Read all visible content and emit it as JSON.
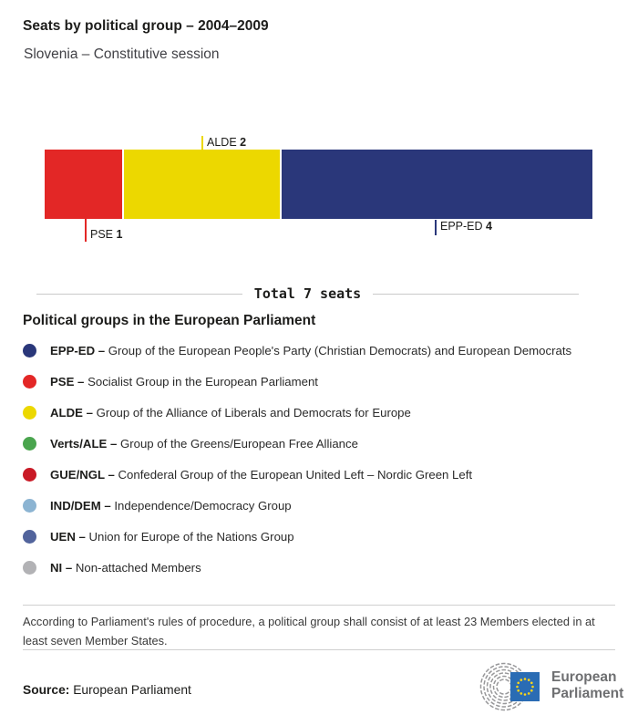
{
  "header": {
    "title": "Seats by political group – 2004–2009",
    "subtitle": "Slovenia – Constitutive session"
  },
  "chart_data": {
    "type": "bar",
    "orientation": "horizontal-stacked",
    "title": "Seats by political group – 2004–2009",
    "subtitle": "Slovenia – Constitutive session",
    "categories": [
      "PSE",
      "ALDE",
      "EPP-ED"
    ],
    "values": [
      1,
      2,
      4
    ],
    "total_seats": 7,
    "total_label": "Total 7 seats",
    "segments": [
      {
        "label": "PSE",
        "value": 1,
        "color": "#e32726",
        "callout_position": "below"
      },
      {
        "label": "ALDE",
        "value": 2,
        "color": "#ecd800",
        "callout_position": "above"
      },
      {
        "label": "EPP-ED",
        "value": 4,
        "color": "#2a377a",
        "callout_position": "below"
      }
    ]
  },
  "legend": {
    "heading": "Political groups in the European Parliament",
    "items": [
      {
        "abbr": "EPP-ED –",
        "desc": "Group of the European People's Party (Christian Democrats) and European Democrats",
        "color": "#2a377a"
      },
      {
        "abbr": "PSE –",
        "desc": "Socialist Group in the European Parliament",
        "color": "#e32726"
      },
      {
        "abbr": "ALDE –",
        "desc": "Group of the Alliance of Liberals and Democrats for Europe",
        "color": "#ecd800"
      },
      {
        "abbr": "Verts/ALE –",
        "desc": "Group of the Greens/European Free Alliance",
        "color": "#4aa54e"
      },
      {
        "abbr": "GUE/NGL –",
        "desc": "Confederal Group of the European United Left – Nordic Green Left",
        "color": "#c91a26"
      },
      {
        "abbr": "IND/DEM –",
        "desc": "Independence/Democracy Group",
        "color": "#8cb4d2"
      },
      {
        "abbr": "UEN –",
        "desc": "Union for Europe of the Nations Group",
        "color": "#52649c"
      },
      {
        "abbr": "NI –",
        "desc": "Non-attached Members",
        "color": "#b2b2b5"
      }
    ]
  },
  "footnote": {
    "text": "According to Parliament's rules of procedure, a political group shall consist of at least 23 Members elected in at least seven Member States."
  },
  "source": {
    "label": "Source:",
    "value": " European Parliament"
  },
  "logo": {
    "line1": "European",
    "line2": "Parliament",
    "flag_color": "#2a6cb4",
    "star_color": "#ffd617"
  }
}
